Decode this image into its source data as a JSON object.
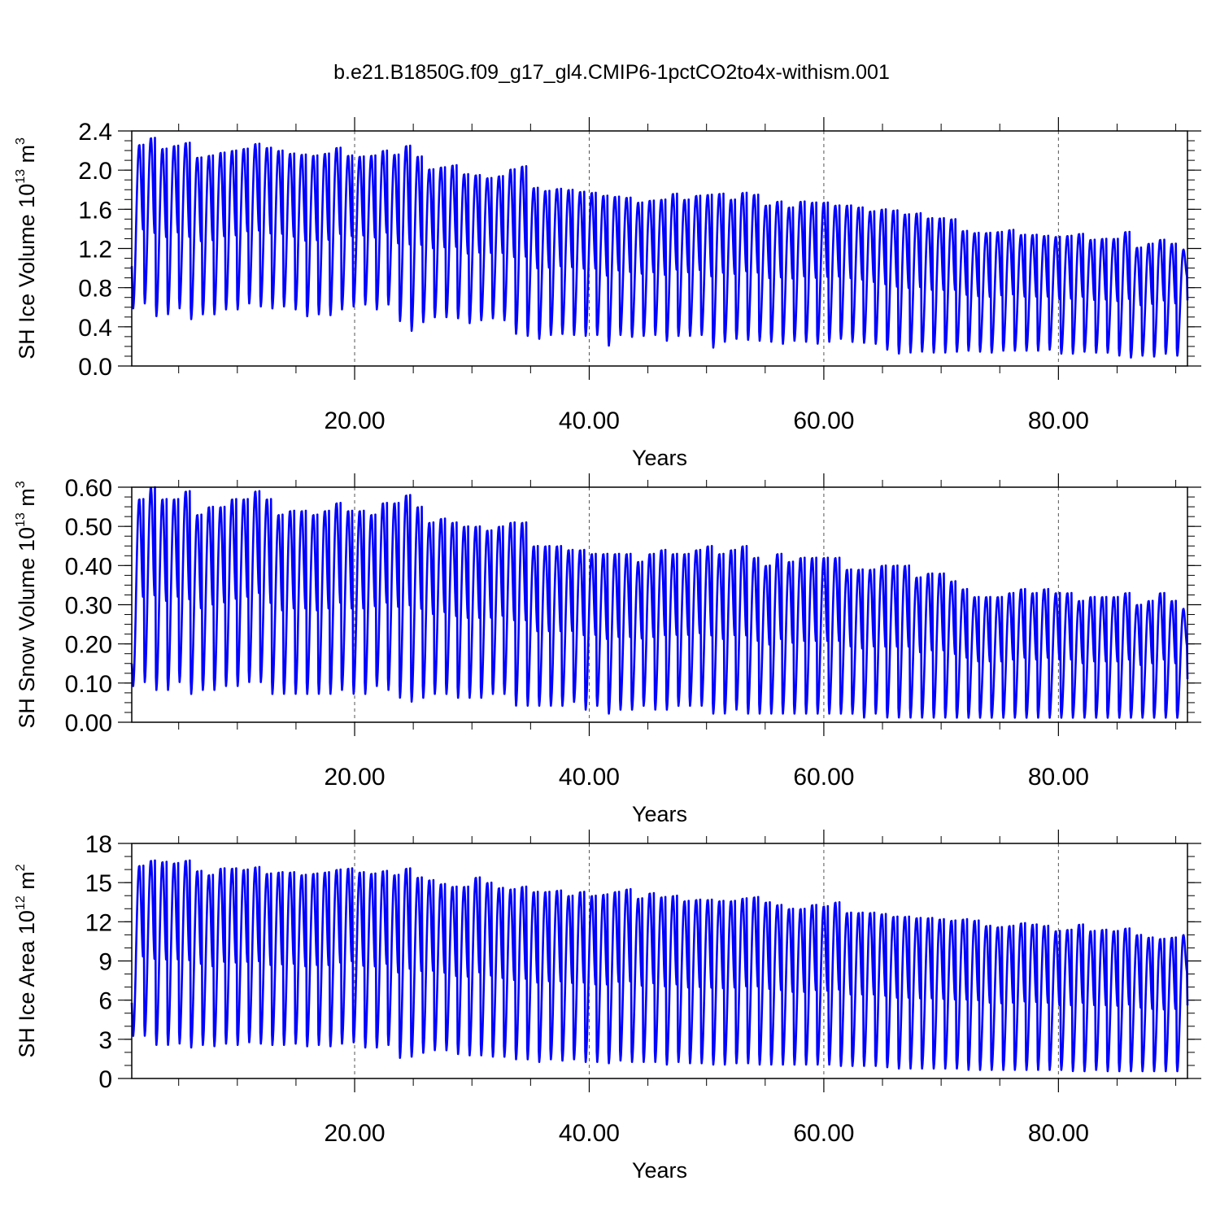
{
  "figure": {
    "title": "b.e21.B1850G.f09_g17_gl4.CMIP6-1pctCO2to4x-withism.001",
    "line_color": "#0000ff"
  },
  "chart_data": [
    {
      "type": "line",
      "name": "ice-volume",
      "ylabel_main": "SH Ice Volume 10",
      "ylabel_exp": "13",
      "ylabel_unit": "m",
      "ylabel_unit_exp": "3",
      "xlabel": "Years",
      "xlim": [
        1,
        91
      ],
      "ylim": [
        0,
        2.4
      ],
      "x_ticks": [
        20,
        40,
        60,
        80
      ],
      "x_tick_labels": [
        "20.00",
        "40.00",
        "60.00",
        "80.00"
      ],
      "y_ticks": [
        0,
        0.4,
        0.8,
        1.2,
        1.6,
        2.0,
        2.4
      ],
      "y_tick_labels": [
        "0.0",
        "0.4",
        "0.8",
        "1.2",
        "1.6",
        "2.0",
        "2.4"
      ],
      "y_minor_step": 0.1,
      "start_value": 1.02,
      "end_value": 0.67,
      "annual_max": [
        2.26,
        2.33,
        2.22,
        2.25,
        2.28,
        2.13,
        2.15,
        2.18,
        2.2,
        2.22,
        2.27,
        2.23,
        2.2,
        2.17,
        2.16,
        2.15,
        2.17,
        2.23,
        2.15,
        2.14,
        2.15,
        2.2,
        2.16,
        2.25,
        2.14,
        2.01,
        2.03,
        2.05,
        1.96,
        1.95,
        1.92,
        1.94,
        2.01,
        2.04,
        1.82,
        1.79,
        1.81,
        1.8,
        1.78,
        1.77,
        1.74,
        1.73,
        1.72,
        1.67,
        1.69,
        1.7,
        1.76,
        1.7,
        1.74,
        1.75,
        1.76,
        1.7,
        1.77,
        1.75,
        1.64,
        1.68,
        1.62,
        1.68,
        1.67,
        1.67,
        1.64,
        1.64,
        1.62,
        1.58,
        1.6,
        1.59,
        1.55,
        1.56,
        1.51,
        1.51,
        1.5,
        1.38,
        1.36,
        1.36,
        1.37,
        1.39,
        1.34,
        1.34,
        1.33,
        1.32,
        1.33,
        1.35,
        1.29,
        1.3,
        1.3,
        1.37,
        1.21,
        1.25,
        1.29,
        1.25,
        1.19
      ],
      "annual_min": [
        0.58,
        0.63,
        0.5,
        0.52,
        0.58,
        0.47,
        0.52,
        0.52,
        0.57,
        0.57,
        0.63,
        0.6,
        0.58,
        0.6,
        0.57,
        0.5,
        0.52,
        0.51,
        0.57,
        0.6,
        0.62,
        0.57,
        0.62,
        0.45,
        0.35,
        0.44,
        0.49,
        0.49,
        0.48,
        0.43,
        0.46,
        0.48,
        0.46,
        0.32,
        0.3,
        0.27,
        0.31,
        0.32,
        0.31,
        0.3,
        0.31,
        0.2,
        0.31,
        0.29,
        0.3,
        0.31,
        0.25,
        0.3,
        0.3,
        0.31,
        0.18,
        0.24,
        0.27,
        0.26,
        0.25,
        0.24,
        0.22,
        0.25,
        0.24,
        0.22,
        0.24,
        0.27,
        0.24,
        0.23,
        0.22,
        0.16,
        0.12,
        0.13,
        0.14,
        0.13,
        0.13,
        0.14,
        0.15,
        0.14,
        0.13,
        0.15,
        0.15,
        0.15,
        0.15,
        0.16,
        0.12,
        0.12,
        0.14,
        0.13,
        0.13,
        0.1,
        0.08,
        0.1,
        0.09,
        0.12,
        0.1
      ]
    },
    {
      "type": "line",
      "name": "snow-volume",
      "ylabel_main": "SH Snow Volume 10",
      "ylabel_exp": "13",
      "ylabel_unit": "m",
      "ylabel_unit_exp": "3",
      "xlabel": "Years",
      "xlim": [
        1,
        91
      ],
      "ylim": [
        0,
        0.6
      ],
      "x_ticks": [
        20,
        40,
        60,
        80
      ],
      "x_tick_labels": [
        "20.00",
        "40.00",
        "60.00",
        "80.00"
      ],
      "y_ticks": [
        0,
        0.1,
        0.2,
        0.3,
        0.4,
        0.5,
        0.6
      ],
      "y_tick_labels": [
        "0.00",
        "0.10",
        "0.20",
        "0.30",
        "0.40",
        "0.50",
        "0.60"
      ],
      "y_minor_step": 0.025,
      "start_value": 0.15,
      "end_value": 0.11,
      "annual_max": [
        0.57,
        0.6,
        0.57,
        0.57,
        0.59,
        0.53,
        0.55,
        0.55,
        0.57,
        0.57,
        0.59,
        0.57,
        0.53,
        0.54,
        0.54,
        0.53,
        0.54,
        0.56,
        0.54,
        0.54,
        0.53,
        0.56,
        0.56,
        0.58,
        0.55,
        0.51,
        0.52,
        0.51,
        0.5,
        0.5,
        0.49,
        0.5,
        0.51,
        0.51,
        0.45,
        0.45,
        0.45,
        0.44,
        0.44,
        0.43,
        0.43,
        0.43,
        0.43,
        0.41,
        0.43,
        0.44,
        0.43,
        0.43,
        0.44,
        0.45,
        0.43,
        0.44,
        0.45,
        0.42,
        0.4,
        0.43,
        0.41,
        0.42,
        0.42,
        0.42,
        0.42,
        0.39,
        0.39,
        0.39,
        0.4,
        0.4,
        0.4,
        0.37,
        0.38,
        0.38,
        0.36,
        0.34,
        0.32,
        0.32,
        0.32,
        0.33,
        0.34,
        0.33,
        0.34,
        0.33,
        0.33,
        0.31,
        0.32,
        0.32,
        0.32,
        0.33,
        0.3,
        0.31,
        0.33,
        0.31,
        0.29
      ],
      "annual_min": [
        0.09,
        0.1,
        0.08,
        0.08,
        0.1,
        0.07,
        0.08,
        0.08,
        0.09,
        0.09,
        0.1,
        0.1,
        0.07,
        0.07,
        0.07,
        0.07,
        0.07,
        0.07,
        0.08,
        0.07,
        0.07,
        0.09,
        0.08,
        0.06,
        0.05,
        0.06,
        0.07,
        0.07,
        0.06,
        0.06,
        0.06,
        0.07,
        0.07,
        0.04,
        0.04,
        0.04,
        0.04,
        0.04,
        0.05,
        0.03,
        0.04,
        0.02,
        0.03,
        0.03,
        0.04,
        0.03,
        0.03,
        0.04,
        0.04,
        0.04,
        0.02,
        0.02,
        0.03,
        0.02,
        0.02,
        0.02,
        0.02,
        0.02,
        0.02,
        0.02,
        0.02,
        0.02,
        0.02,
        0.01,
        0.02,
        0.01,
        0.01,
        0.01,
        0.01,
        0.01,
        0.01,
        0.01,
        0.01,
        0.01,
        0.01,
        0.01,
        0.01,
        0.01,
        0.01,
        0.01,
        0.01,
        0.01,
        0.01,
        0.01,
        0.01,
        0.01,
        0.01,
        0.01,
        0.01,
        0.01,
        0.01
      ]
    },
    {
      "type": "line",
      "name": "ice-area",
      "ylabel_main": "SH Ice Area 10",
      "ylabel_exp": "12",
      "ylabel_unit": "m",
      "ylabel_unit_exp": "2",
      "xlabel": "Years",
      "xlim": [
        1,
        91
      ],
      "ylim": [
        0,
        18
      ],
      "x_ticks": [
        20,
        40,
        60,
        80
      ],
      "x_tick_labels": [
        "20.00",
        "40.00",
        "60.00",
        "80.00"
      ],
      "y_ticks": [
        0,
        3,
        6,
        9,
        12,
        15,
        18
      ],
      "y_tick_labels": [
        "0",
        "3",
        "6",
        "9",
        "12",
        "15",
        "18"
      ],
      "y_minor_step": 1,
      "start_value": 5.8,
      "end_value": 5.6,
      "annual_max": [
        16.3,
        16.7,
        16.6,
        16.5,
        16.7,
        15.9,
        15.6,
        16.1,
        16.1,
        16.0,
        16.2,
        15.7,
        15.8,
        15.8,
        15.6,
        15.7,
        15.8,
        16.0,
        16.1,
        15.8,
        15.7,
        15.9,
        15.6,
        16.1,
        15.4,
        15.2,
        14.9,
        14.7,
        14.7,
        15.4,
        15.0,
        14.6,
        14.5,
        14.7,
        14.3,
        14.3,
        14.4,
        14.0,
        14.3,
        14.0,
        14.1,
        14.3,
        14.5,
        13.8,
        14.2,
        13.9,
        14.0,
        13.6,
        13.7,
        13.7,
        13.6,
        13.6,
        13.8,
        13.9,
        13.5,
        13.3,
        13.0,
        13.0,
        13.3,
        13.2,
        13.5,
        12.7,
        12.7,
        12.7,
        12.6,
        12.4,
        12.4,
        12.3,
        12.3,
        12.2,
        12.1,
        12.2,
        12.1,
        11.7,
        11.6,
        11.7,
        11.9,
        11.8,
        11.7,
        11.3,
        11.4,
        11.8,
        11.3,
        11.4,
        11.3,
        11.5,
        11.0,
        10.8,
        10.7,
        10.8,
        11.0
      ],
      "annual_min": [
        3.2,
        3.2,
        2.5,
        2.5,
        2.6,
        2.3,
        2.5,
        2.4,
        2.6,
        2.5,
        2.7,
        2.6,
        2.5,
        2.5,
        2.6,
        2.4,
        2.5,
        2.4,
        2.6,
        2.7,
        2.3,
        2.3,
        2.5,
        1.5,
        1.6,
        1.9,
        2.1,
        2.1,
        1.8,
        1.7,
        1.7,
        1.6,
        1.6,
        1.4,
        1.4,
        1.2,
        1.4,
        1.3,
        1.4,
        1.2,
        1.2,
        1.1,
        1.3,
        1.2,
        1.2,
        1.2,
        1.0,
        1.2,
        1.1,
        1.1,
        1.0,
        1.0,
        1.1,
        1.1,
        1.0,
        1.0,
        1.0,
        1.0,
        1.0,
        1.0,
        1.0,
        0.9,
        0.9,
        0.9,
        0.9,
        0.8,
        0.7,
        0.7,
        0.7,
        0.7,
        0.7,
        0.7,
        0.6,
        0.6,
        0.6,
        0.6,
        0.6,
        0.6,
        0.6,
        0.6,
        0.6,
        0.5,
        0.5,
        0.6,
        0.5,
        0.5,
        0.5,
        0.5,
        0.5,
        0.5,
        0.5
      ]
    }
  ]
}
